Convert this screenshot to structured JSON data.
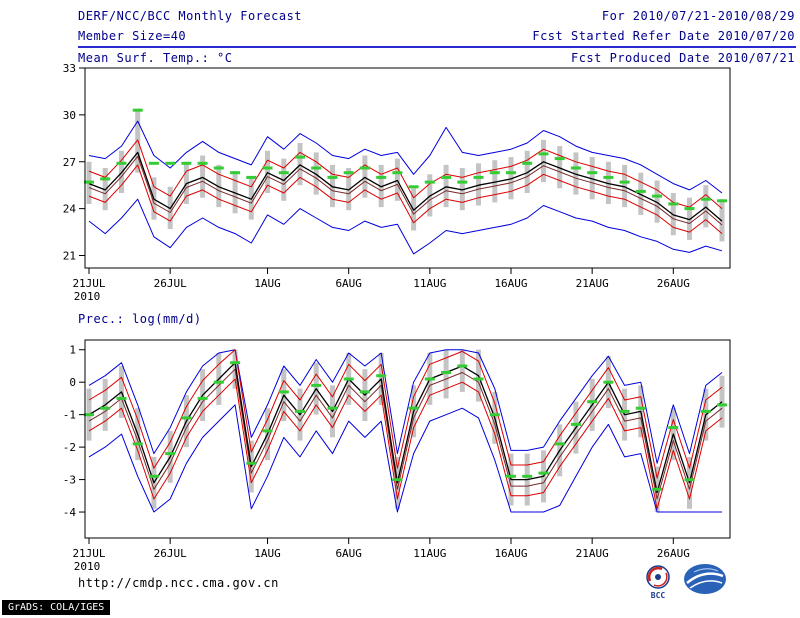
{
  "header": {
    "title": "DERF/NCC/BCC Monthly Forecast",
    "forecast_range": "For 2010/07/21-2010/08/29",
    "member_size": "Member Size=40",
    "refer_date": "Fcst Started Refer Date 2010/07/20",
    "produced_date": "Fcst Produced Date 2010/07/21"
  },
  "footer": {
    "url": "http://cmdp.ncc.cma.gov.cn",
    "grads_credit": "GrADS: COLA/IGES",
    "logos": [
      {
        "name": "bcc-logo",
        "caption": "BCC"
      },
      {
        "name": "cma-logo",
        "caption": ""
      }
    ]
  },
  "colors": {
    "header_text": "#00008b",
    "separator": "#2a2ad0",
    "ensemble_max_min": "#0000dd",
    "sigma_band": "#dd0000",
    "ensemble_mean": "#000000",
    "control_run": "#7a2a2a",
    "median_marker": "#33cc33",
    "spread_bar": "#c4c4c4"
  },
  "chart_data": [
    {
      "type": "line",
      "title": "Mean Surf. Temp.: °C",
      "xlabel": "",
      "ylabel": "°C",
      "ylim": [
        20.2,
        33
      ],
      "yticks": [
        21,
        24,
        27,
        30,
        33
      ],
      "year": "2010",
      "n_points": 40,
      "xticks": [
        {
          "i": 0,
          "label": "21JUL"
        },
        {
          "i": 5,
          "label": "26JUL"
        },
        {
          "i": 11,
          "label": "1AUG"
        },
        {
          "i": 16,
          "label": "6AUG"
        },
        {
          "i": 21,
          "label": "11AUG"
        },
        {
          "i": 26,
          "label": "16AUG"
        },
        {
          "i": 31,
          "label": "21AUG"
        },
        {
          "i": 36,
          "label": "26AUG"
        }
      ],
      "series": [
        {
          "name": "ensemble-max",
          "color": "#0000dd",
          "width": 1,
          "values": [
            27.4,
            27.2,
            28.0,
            29.6,
            27.4,
            26.6,
            27.6,
            28.3,
            27.6,
            27.2,
            26.8,
            28.6,
            27.8,
            28.8,
            28.2,
            27.4,
            27.2,
            27.8,
            27.4,
            27.6,
            26.2,
            27.4,
            29.2,
            27.6,
            27.4,
            27.6,
            27.8,
            28.2,
            29.0,
            28.6,
            28.0,
            27.6,
            27.4,
            27.2,
            26.8,
            26.2,
            25.6,
            25.2,
            25.8,
            25.0
          ]
        },
        {
          "name": "plus-sigma",
          "color": "#dd0000",
          "width": 1,
          "values": [
            26.4,
            26.0,
            27.1,
            28.4,
            25.4,
            24.8,
            26.4,
            26.8,
            26.2,
            25.8,
            25.4,
            27.1,
            26.6,
            27.6,
            27.0,
            26.2,
            26.0,
            26.8,
            26.2,
            26.6,
            24.7,
            25.6,
            26.2,
            26.0,
            26.3,
            26.5,
            26.7,
            27.1,
            27.8,
            27.4,
            27.0,
            26.7,
            26.4,
            26.2,
            25.7,
            25.2,
            24.4,
            24.1,
            24.9,
            24.0
          ]
        },
        {
          "name": "control-run",
          "color": "#7a2a2a",
          "width": 1,
          "values": [
            25.35,
            24.95,
            26.05,
            27.35,
            24.35,
            23.75,
            25.35,
            25.75,
            25.15,
            24.75,
            24.35,
            26.05,
            25.55,
            26.55,
            25.95,
            25.15,
            24.95,
            25.75,
            25.15,
            25.55,
            23.65,
            24.55,
            25.15,
            24.95,
            25.25,
            25.45,
            25.65,
            26.05,
            26.75,
            26.35,
            25.95,
            25.65,
            25.35,
            25.15,
            24.65,
            24.15,
            23.35,
            23.05,
            23.85,
            22.95
          ]
        },
        {
          "name": "ensemble-mean",
          "color": "#000000",
          "width": 1.3,
          "values": [
            25.6,
            25.2,
            26.3,
            27.6,
            24.6,
            24.0,
            25.6,
            26.0,
            25.4,
            25.0,
            24.6,
            26.3,
            25.8,
            26.8,
            26.2,
            25.4,
            25.2,
            26.0,
            25.4,
            25.8,
            23.9,
            24.8,
            25.4,
            25.2,
            25.5,
            25.7,
            25.9,
            26.3,
            27.0,
            26.6,
            26.2,
            25.9,
            25.6,
            25.4,
            24.9,
            24.4,
            23.6,
            23.3,
            24.1,
            23.2
          ]
        },
        {
          "name": "minus-sigma",
          "color": "#dd0000",
          "width": 1,
          "values": [
            24.8,
            24.4,
            25.5,
            26.8,
            23.8,
            23.2,
            24.8,
            25.2,
            24.6,
            24.2,
            23.8,
            25.5,
            25.0,
            26.0,
            25.4,
            24.6,
            24.4,
            25.2,
            24.6,
            25.0,
            23.1,
            24.0,
            24.6,
            24.4,
            24.7,
            24.9,
            25.1,
            25.5,
            26.2,
            25.8,
            25.4,
            25.1,
            24.8,
            24.6,
            24.1,
            23.6,
            22.8,
            22.5,
            23.3,
            22.4
          ]
        },
        {
          "name": "ensemble-min",
          "color": "#0000dd",
          "width": 1,
          "values": [
            23.2,
            22.4,
            23.4,
            24.6,
            22.2,
            21.5,
            22.8,
            23.4,
            22.8,
            22.4,
            21.8,
            23.6,
            23.0,
            24.0,
            23.4,
            22.8,
            22.6,
            23.2,
            22.8,
            23.0,
            21.1,
            21.8,
            22.6,
            22.4,
            22.6,
            22.8,
            23.0,
            23.4,
            24.2,
            23.8,
            23.4,
            23.2,
            22.8,
            22.6,
            22.2,
            21.9,
            21.4,
            21.2,
            21.6,
            21.3
          ]
        }
      ],
      "markers": {
        "name": "median-markers",
        "color": "#33cc33",
        "values": [
          25.7,
          25.9,
          26.9,
          30.3,
          26.9,
          26.9,
          26.9,
          26.9,
          26.6,
          26.3,
          26.0,
          26.6,
          26.3,
          27.3,
          26.6,
          26.0,
          26.3,
          26.6,
          26.0,
          26.3,
          25.4,
          25.7,
          26.0,
          25.7,
          26.0,
          26.3,
          26.3,
          26.9,
          27.5,
          27.2,
          26.6,
          26.3,
          26.0,
          25.7,
          25.1,
          24.8,
          24.3,
          24.0,
          24.6,
          24.5
        ]
      },
      "bars": {
        "color": "#c4c4c4",
        "low": [
          24.3,
          23.9,
          25.0,
          26.3,
          23.3,
          22.7,
          24.3,
          24.7,
          24.1,
          23.7,
          23.3,
          25.0,
          24.5,
          25.5,
          24.9,
          24.1,
          23.9,
          24.7,
          24.1,
          24.5,
          22.6,
          23.5,
          24.1,
          23.9,
          24.2,
          24.4,
          24.6,
          25.0,
          25.7,
          25.3,
          24.9,
          24.6,
          24.3,
          24.1,
          23.6,
          23.1,
          22.3,
          22.0,
          22.8,
          21.9
        ],
        "high": [
          27.0,
          26.6,
          27.7,
          30.4,
          26.0,
          25.4,
          27.0,
          27.4,
          26.8,
          26.4,
          26.0,
          27.7,
          27.2,
          28.2,
          27.6,
          26.8,
          26.6,
          27.4,
          26.8,
          27.2,
          25.3,
          26.2,
          26.8,
          26.6,
          26.9,
          27.1,
          27.3,
          27.7,
          28.4,
          28.0,
          27.6,
          27.3,
          27.0,
          26.8,
          26.3,
          25.8,
          25.0,
          24.7,
          25.5,
          24.6
        ]
      }
    },
    {
      "type": "line",
      "title": "Prec.: log(mm/d)",
      "xlabel": "",
      "ylabel": "log(mm/d)",
      "ylim": [
        -4.8,
        1.3
      ],
      "yticks": [
        -4,
        -3,
        -2,
        -1,
        0,
        1
      ],
      "year": "2010",
      "n_points": 40,
      "xticks": [
        {
          "i": 0,
          "label": "21JUL"
        },
        {
          "i": 5,
          "label": "26JUL"
        },
        {
          "i": 11,
          "label": "1AUG"
        },
        {
          "i": 16,
          "label": "6AUG"
        },
        {
          "i": 21,
          "label": "11AUG"
        },
        {
          "i": 26,
          "label": "16AUG"
        },
        {
          "i": 31,
          "label": "21AUG"
        },
        {
          "i": 36,
          "label": "26AUG"
        }
      ],
      "series": [
        {
          "name": "ensemble-max",
          "color": "#0000dd",
          "width": 1,
          "values": [
            -0.1,
            0.2,
            0.6,
            -0.7,
            -2.2,
            -1.4,
            -0.3,
            0.5,
            0.9,
            1.0,
            -1.7,
            -0.7,
            0.5,
            -0.1,
            0.7,
            0.0,
            0.9,
            0.5,
            0.9,
            -2.2,
            0.0,
            0.9,
            1.0,
            1.0,
            0.9,
            -0.2,
            -2.1,
            -2.1,
            -2.0,
            -1.2,
            -0.5,
            0.2,
            0.8,
            -0.1,
            0.0,
            -2.5,
            -0.7,
            -2.2,
            -0.1,
            0.3
          ]
        },
        {
          "name": "plus-sigma",
          "color": "#dd0000",
          "width": 1,
          "values": [
            -0.55,
            -0.25,
            0.15,
            -1.15,
            -2.65,
            -1.85,
            -0.75,
            0.05,
            0.55,
            1.0,
            -2.15,
            -1.15,
            0.05,
            -0.55,
            0.25,
            -0.45,
            0.55,
            0.05,
            0.55,
            -2.65,
            -0.45,
            0.55,
            0.75,
            0.95,
            0.65,
            -0.65,
            -2.55,
            -2.55,
            -2.45,
            -1.65,
            -0.95,
            -0.25,
            0.45,
            -0.55,
            -0.45,
            -2.95,
            -1.15,
            -2.65,
            -0.55,
            -0.15
          ]
        },
        {
          "name": "control-run",
          "color": "#7a2a2a",
          "width": 1,
          "values": [
            -1.2,
            -0.9,
            -0.5,
            -1.8,
            -3.3,
            -2.5,
            -1.4,
            -0.6,
            -0.1,
            0.4,
            -2.8,
            -1.8,
            -0.6,
            -1.2,
            -0.4,
            -1.1,
            -0.1,
            -0.6,
            -0.1,
            -3.3,
            -1.1,
            -0.1,
            0.1,
            0.3,
            0.0,
            -1.3,
            -3.2,
            -3.2,
            -3.1,
            -2.3,
            -1.6,
            -0.9,
            -0.2,
            -1.2,
            -1.1,
            -3.6,
            -1.8,
            -3.3,
            -1.2,
            -0.8
          ]
        },
        {
          "name": "ensemble-mean",
          "color": "#000000",
          "width": 1.3,
          "values": [
            -1.0,
            -0.7,
            -0.3,
            -1.6,
            -3.1,
            -2.3,
            -1.2,
            -0.4,
            0.1,
            0.6,
            -2.6,
            -1.6,
            -0.4,
            -1.0,
            -0.2,
            -0.9,
            0.1,
            -0.4,
            0.1,
            -3.1,
            -0.9,
            0.1,
            0.3,
            0.5,
            0.2,
            -1.1,
            -3.0,
            -3.0,
            -2.9,
            -2.1,
            -1.4,
            -0.7,
            0.0,
            -1.0,
            -0.9,
            -3.4,
            -1.6,
            -3.1,
            -1.0,
            -0.6
          ]
        },
        {
          "name": "minus-sigma",
          "color": "#dd0000",
          "width": 1,
          "values": [
            -1.5,
            -1.2,
            -0.8,
            -2.1,
            -3.6,
            -2.8,
            -1.7,
            -0.9,
            -0.4,
            0.1,
            -3.1,
            -2.1,
            -0.9,
            -1.5,
            -0.7,
            -1.4,
            -0.4,
            -0.9,
            -0.4,
            -3.6,
            -1.4,
            -0.4,
            -0.2,
            0.0,
            -0.3,
            -1.6,
            -3.5,
            -3.5,
            -3.4,
            -2.6,
            -1.9,
            -1.2,
            -0.5,
            -1.5,
            -1.4,
            -3.9,
            -2.1,
            -3.6,
            -1.5,
            -1.1
          ]
        },
        {
          "name": "ensemble-min",
          "color": "#0000dd",
          "width": 1,
          "values": [
            -2.3,
            -2.0,
            -1.6,
            -2.9,
            -4.0,
            -3.6,
            -2.5,
            -1.7,
            -1.2,
            -0.7,
            -3.9,
            -2.9,
            -1.7,
            -2.3,
            -1.5,
            -2.2,
            -1.2,
            -1.7,
            -1.2,
            -4.0,
            -2.2,
            -1.2,
            -1.0,
            -0.8,
            -1.1,
            -2.4,
            -4.0,
            -4.0,
            -4.0,
            -3.8,
            -2.9,
            -2.0,
            -1.3,
            -2.3,
            -2.2,
            -4.0,
            -4.0,
            -4.0,
            -4.0,
            -4.0
          ]
        }
      ],
      "markers": {
        "name": "median-markers",
        "color": "#33cc33",
        "values": [
          -1.0,
          -0.8,
          -0.5,
          -1.9,
          -2.9,
          -2.2,
          -1.1,
          -0.5,
          0.0,
          0.6,
          -2.5,
          -1.5,
          -0.3,
          -0.9,
          -0.1,
          -0.8,
          0.1,
          -0.3,
          0.2,
          -3.0,
          -0.8,
          0.1,
          0.3,
          0.5,
          0.1,
          -1.0,
          -2.9,
          -2.9,
          -2.8,
          -1.9,
          -1.3,
          -0.6,
          0.0,
          -0.9,
          -0.8,
          -3.3,
          -1.4,
          -3.0,
          -0.9,
          -0.7
        ]
      },
      "bars": {
        "color": "#c4c4c4",
        "low": [
          -1.8,
          -1.5,
          -1.1,
          -2.4,
          -3.9,
          -3.1,
          -2.0,
          -1.2,
          -0.7,
          -0.2,
          -3.4,
          -2.4,
          -1.2,
          -1.8,
          -1.0,
          -1.7,
          -0.7,
          -1.2,
          -0.7,
          -3.9,
          -1.7,
          -0.7,
          -0.5,
          -0.3,
          -0.6,
          -1.9,
          -3.8,
          -3.8,
          -3.7,
          -2.9,
          -2.2,
          -1.5,
          -0.8,
          -1.8,
          -1.7,
          -4.0,
          -2.4,
          -3.9,
          -1.8,
          -1.4
        ],
        "high": [
          -0.2,
          0.1,
          0.5,
          -0.8,
          -2.3,
          -1.5,
          -0.4,
          0.4,
          0.9,
          1.0,
          -1.8,
          -0.8,
          0.4,
          -0.2,
          0.6,
          -0.1,
          0.9,
          0.4,
          0.9,
          -2.3,
          -0.1,
          0.9,
          1.0,
          1.0,
          1.0,
          -0.3,
          -2.2,
          -2.2,
          -2.1,
          -1.3,
          -0.6,
          0.1,
          0.8,
          -0.2,
          -0.1,
          -2.6,
          -0.8,
          -2.3,
          -0.2,
          0.2
        ]
      }
    }
  ]
}
